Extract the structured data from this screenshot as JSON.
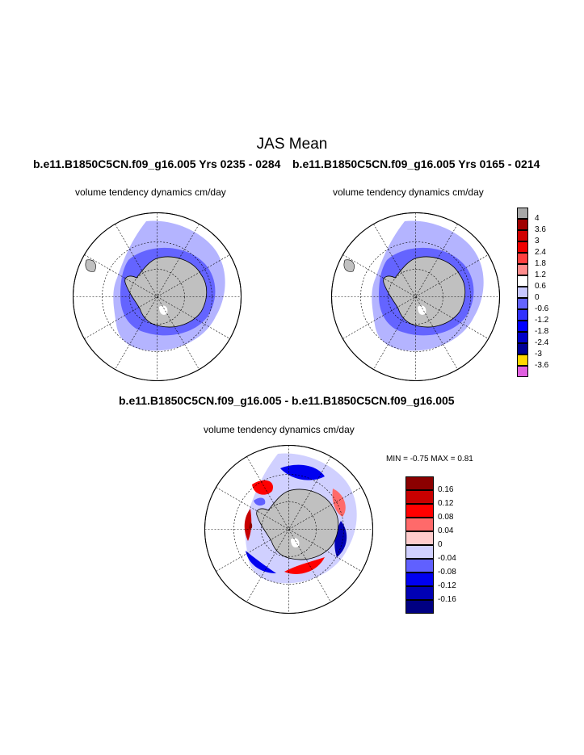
{
  "page": {
    "title": "JAS Mean",
    "top_left_subtitle": "b.e11.B1850C5CN.f09_g16.005  Yrs 0235 - 0284",
    "top_right_subtitle": "b.e11.B1850C5CN.f09_g16.005  Yrs 0165 - 0214",
    "bottom_subtitle": "b.e11.B1850C5CN.f09_g16.005 - b.e11.B1850C5CN.f09_g16.005"
  },
  "maps": {
    "top_left_label": "volume tendency dynamics cm/day",
    "top_right_label": "volume tendency dynamics cm/day",
    "bottom_label": "volume tendency dynamics cm/day",
    "bottom_minmax": "MIN =  -0.75 MAX =   0.81"
  },
  "legend_top": {
    "labels": [
      "4",
      "3.6",
      "3",
      "2.4",
      "1.8",
      "1.2",
      "0.6",
      "0",
      "-0.6",
      "-1.2",
      "-1.8",
      "-2.4",
      "-3",
      "-3.6"
    ],
    "colors": [
      "#a8a8a8",
      "#a00000",
      "#d00000",
      "#f00000",
      "#ff4040",
      "#ff8c8c",
      "#ffffff",
      "#c8c8ff",
      "#6464ff",
      "#3232ff",
      "#0000ff",
      "#0000c8",
      "#000096",
      "#ffd700",
      "#e060e0"
    ]
  },
  "legend_bottom": {
    "labels": [
      "0.16",
      "0.12",
      "0.08",
      "0.04",
      "0",
      "-0.04",
      "-0.08",
      "-0.12",
      "-0.16"
    ],
    "colors": [
      "#8b0000",
      "#c80000",
      "#ff0000",
      "#ff6a6a",
      "#ffcccc",
      "#d0d0ff",
      "#6060ff",
      "#0000f0",
      "#0000b4",
      "#000082"
    ]
  },
  "colors": {
    "land": "#c0c0c0",
    "ice_blue_light": "#b4b4ff",
    "ice_blue_mid": "#6464ff"
  }
}
